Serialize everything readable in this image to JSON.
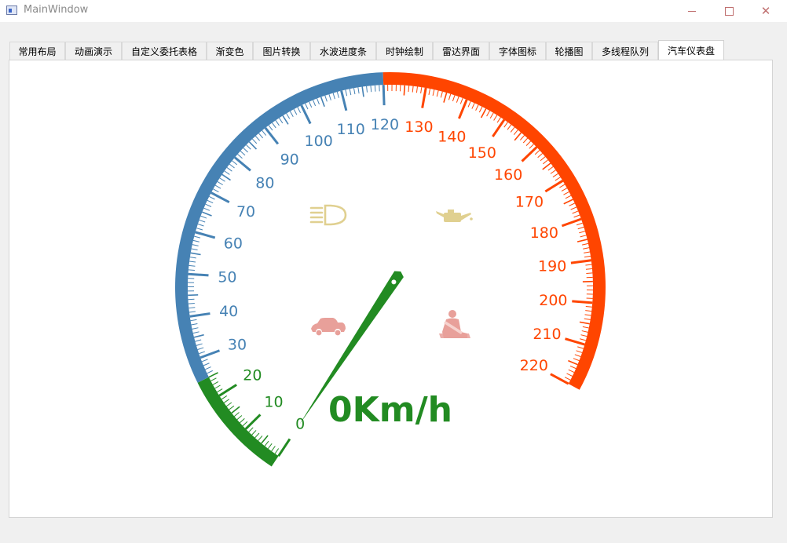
{
  "window": {
    "title": "MainWindow"
  },
  "tabs": [
    {
      "label": "常用布局"
    },
    {
      "label": "动画演示"
    },
    {
      "label": "自定义委托表格"
    },
    {
      "label": "渐变色"
    },
    {
      "label": "图片转换"
    },
    {
      "label": "水波进度条"
    },
    {
      "label": "时钟绘制"
    },
    {
      "label": "雷达界面"
    },
    {
      "label": "字体图标"
    },
    {
      "label": "轮播图"
    },
    {
      "label": "多线程队列"
    },
    {
      "label": "汽车仪表盘",
      "active": true
    }
  ],
  "gauge": {
    "speed_text": "0Km/h",
    "speed_value": 0,
    "min": 0,
    "max": 220,
    "scale_labels": [
      "0",
      "10",
      "20",
      "30",
      "40",
      "50",
      "60",
      "70",
      "80",
      "90",
      "100",
      "110",
      "120",
      "130",
      "140",
      "150",
      "160",
      "170",
      "180",
      "190",
      "200",
      "210",
      "220"
    ],
    "zones": [
      {
        "from": 0,
        "to": 25,
        "color": "#228b22"
      },
      {
        "from": 25,
        "to": 120,
        "color": "#4682b4"
      },
      {
        "from": 120,
        "to": 220,
        "color": "#ff4500"
      }
    ],
    "icons": [
      "headlight-icon",
      "oil-can-icon",
      "car-door-icon",
      "seatbelt-icon"
    ],
    "icon_colors": {
      "top": "#e0d090",
      "bottom": "#e8a09a"
    },
    "needle_color": "#228b22"
  }
}
